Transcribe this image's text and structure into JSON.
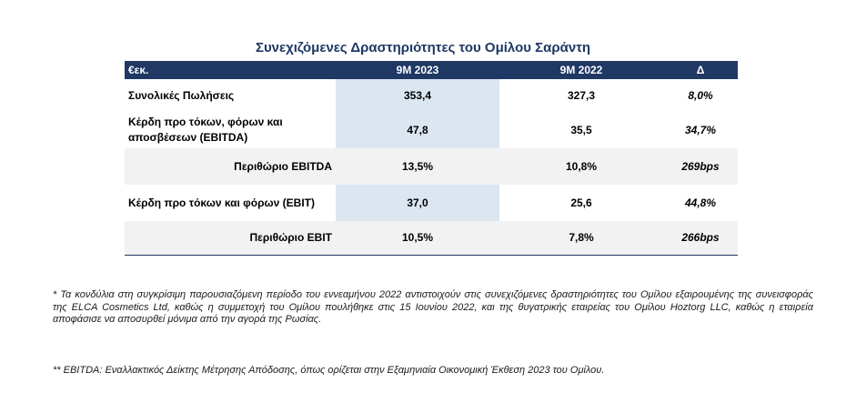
{
  "title": "Συνεχιζόμενες Δραστηριότητες του Ομίλου Σαράντη",
  "table": {
    "headers": [
      "€εκ.",
      "9Μ 2023",
      "9Μ 2022",
      "Δ"
    ],
    "rows": [
      {
        "label": "Συνολικές Πωλήσεις",
        "v2023": "353,4",
        "v2022": "327,3",
        "delta": "8,0%"
      },
      {
        "label": "Κέρδη προ τόκων, φόρων και αποσβέσεων (EBITDA)",
        "v2023": "47,8",
        "v2022": "35,5",
        "delta": "34,7%"
      },
      {
        "label": "Περιθώριο EBITDA",
        "v2023": "13,5%",
        "v2022": "10,8%",
        "delta": "269bps"
      },
      {
        "label": "Κέρδη προ τόκων και φόρων (EBIT)",
        "v2023": "37,0",
        "v2022": "25,6",
        "delta": "44,8%"
      },
      {
        "label": "Περιθώριο EBIT",
        "v2023": "10,5%",
        "v2022": "7,8%",
        "delta": "266bps"
      }
    ]
  },
  "notes": {
    "note1": "* Τα κονδύλια στη συγκρίσιμη παρουσιαζόμενη περίοδο του εννεαμήνου 2022 αντιστοιχούν στις συνεχιζόμενες δραστηριότητες του Ομίλου εξαιρουμένης της συνεισφοράς της ELCA Cosmetics Ltd, καθώς η συμμετοχή του Ομίλου πουλήθηκε στις 15 Ιουνίου 2022, και της θυγατρικής εταιρείας του Ομίλου Hoztorg LLC, καθώς η εταιρεία αποφάσισε να αποσυρθεί μόνιμα από την αγορά της Ρωσίας.",
    "note2": "** EBITDA: Εναλλακτικός Δείκτης Μέτρησης Απόδοσης, όπως ορίζεται στην Εξαμηνιαία Οικονομική Έκθεση 2023 του Ομίλου."
  },
  "colors": {
    "header_bg": "#1f3864",
    "title": "#1f3864",
    "shade": "#dce6f1",
    "light": "#f2f2f2"
  }
}
